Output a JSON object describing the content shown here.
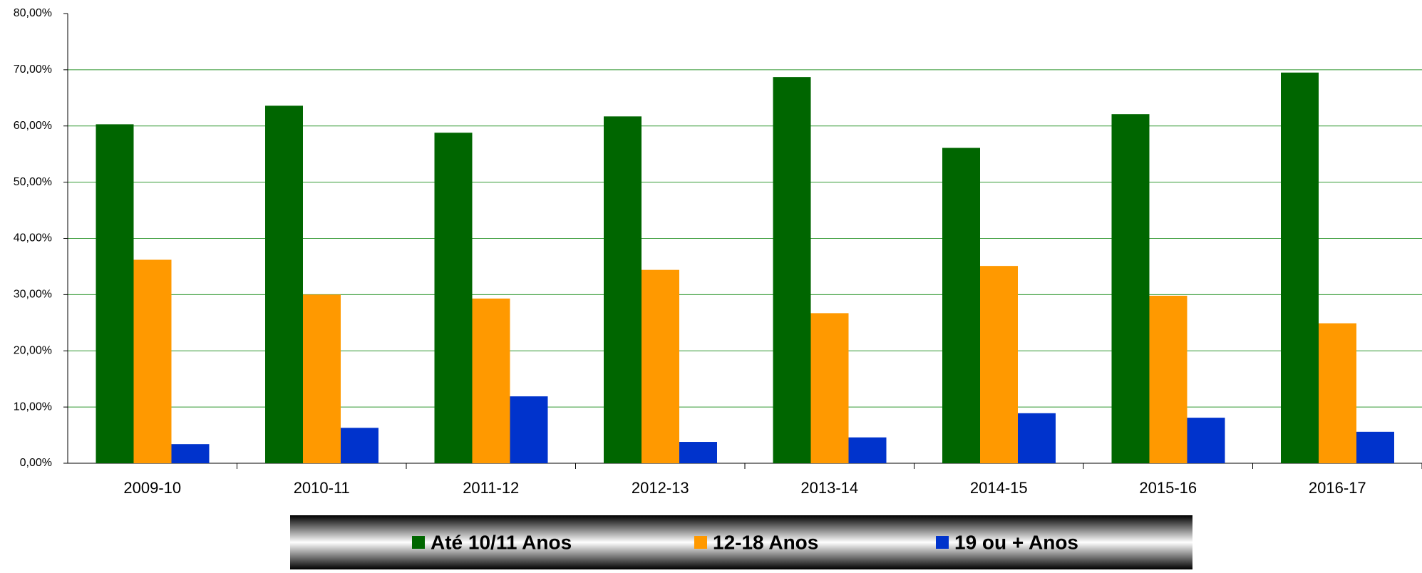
{
  "chart_data": {
    "type": "bar",
    "categories": [
      "2009-10",
      "2010-11",
      "2011-12",
      "2012-13",
      "2013-14",
      "2014-15",
      "2015-16",
      "2016-17"
    ],
    "series": [
      {
        "name": "Até 10/11 Anos",
        "color": "#006600",
        "values": [
          60.3,
          63.6,
          58.8,
          61.7,
          68.7,
          56.1,
          62.1,
          69.5
        ]
      },
      {
        "name": "12-18 Anos",
        "color": "#ff9900",
        "values": [
          36.2,
          30.0,
          29.3,
          34.4,
          26.7,
          35.1,
          29.8,
          24.9
        ]
      },
      {
        "name": "19 ou + Anos",
        "color": "#0033cc",
        "values": [
          3.4,
          6.3,
          11.9,
          3.8,
          4.6,
          8.9,
          8.1,
          5.6
        ]
      }
    ],
    "ylim": [
      0,
      80
    ],
    "yticks": [
      {
        "value": 0,
        "label": "0,00%"
      },
      {
        "value": 10,
        "label": "10,00%"
      },
      {
        "value": 20,
        "label": "20,00%"
      },
      {
        "value": 30,
        "label": "30,00%"
      },
      {
        "value": 40,
        "label": "40,00%"
      },
      {
        "value": 50,
        "label": "50,00%"
      },
      {
        "value": 60,
        "label": "60,00%"
      },
      {
        "value": 70,
        "label": "70,00%"
      },
      {
        "value": 80,
        "label": "80,00%"
      }
    ],
    "grid": true,
    "grid_color": "#339933",
    "legend": "bottom"
  }
}
